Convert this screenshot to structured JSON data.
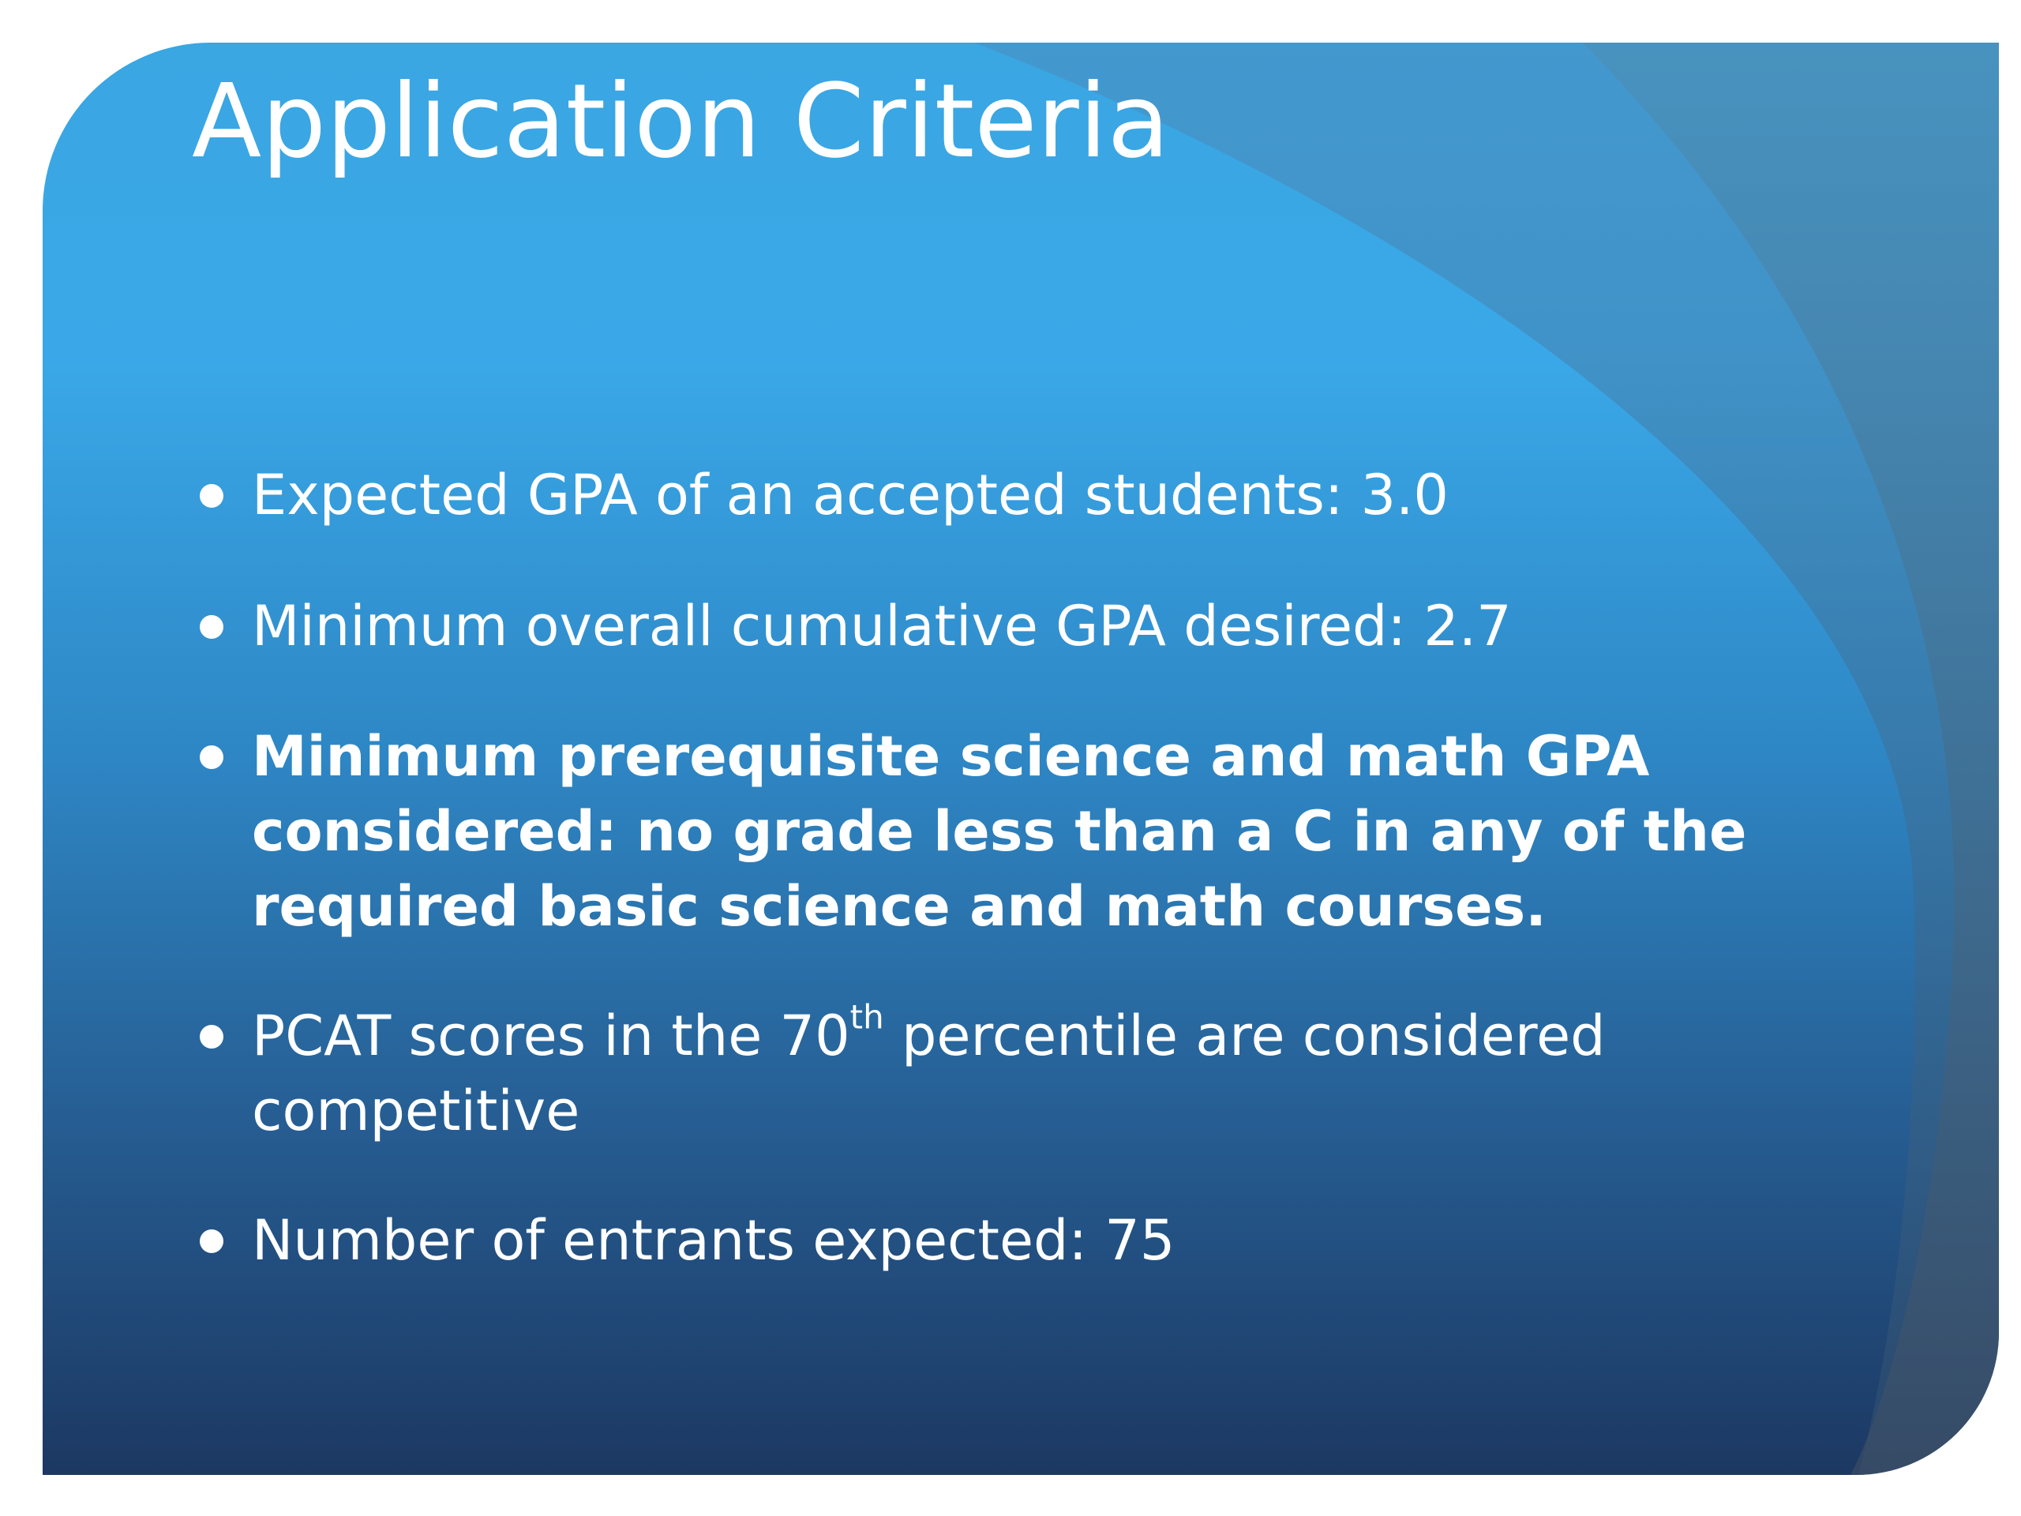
{
  "slide": {
    "title": "Application Criteria",
    "bullets": [
      {
        "text": "Expected GPA of an accepted students: 3.0"
      },
      {
        "text": "Minimum overall cumulative GPA desired: 2.7"
      },
      {
        "text": "Minimum prerequisite science and math GPA considered: no grade less than a C in any of the required basic science and math courses."
      },
      {
        "text_before": "PCAT scores in the 70",
        "superscript": "th",
        "text_after": " percentile are considered competitive"
      },
      {
        "text": "Number of entrants expected: 75"
      }
    ]
  },
  "colors": {
    "background_top": "#3aa6e2",
    "background_bottom": "#1c3862",
    "text": "#ffffff"
  }
}
